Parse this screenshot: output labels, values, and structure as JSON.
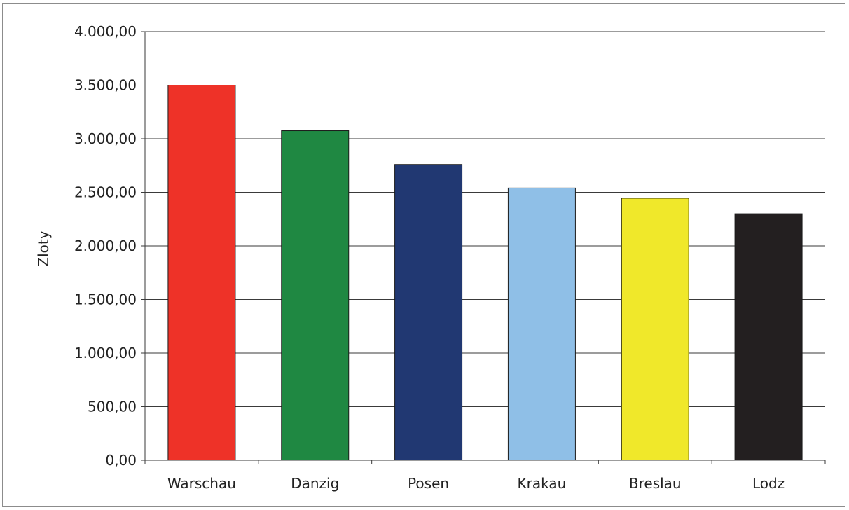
{
  "chart_data": {
    "type": "bar",
    "title": "",
    "xlabel": "",
    "ylabel": "Zloty",
    "categories": [
      "Warschau",
      "Danzig",
      "Posen",
      "Krakau",
      "Breslau",
      "Lodz"
    ],
    "values": [
      3500,
      3075,
      2760,
      2540,
      2445,
      2300
    ],
    "colors": [
      "#ee3228",
      "#1f8842",
      "#213872",
      "#8fbfe7",
      "#f0e82a",
      "#231f20"
    ],
    "ylim": [
      0,
      4000
    ],
    "yticks": [
      0,
      500,
      1000,
      1500,
      2000,
      2500,
      3000,
      3500,
      4000
    ],
    "ytick_labels": [
      "0,00",
      "500,00",
      "1.000,00",
      "1.500,00",
      "2.000,00",
      "2.500,00",
      "3.000,00",
      "3.500,00",
      "4.000,00"
    ],
    "grid": true,
    "legend": false
  }
}
